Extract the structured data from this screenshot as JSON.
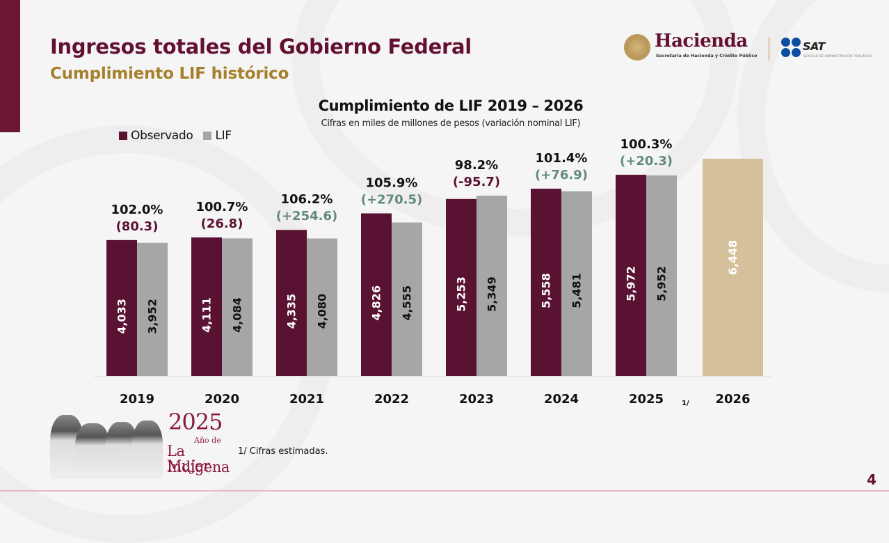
{
  "header": {
    "title": "Ingresos totales del Gobierno Federal",
    "subtitle": "Cumplimiento LIF histórico"
  },
  "logos": {
    "hacienda_name": "Hacienda",
    "hacienda_sub": "Secretaría de Hacienda y Crédito Público",
    "sat_name": "SAT",
    "sat_sub": "SERVICIO DE ADMINISTRACIÓN TRIBUTARIA"
  },
  "colors": {
    "observado": "#5a1232",
    "lif": "#a6a6a6",
    "estimado": "#d4c19c",
    "variation_negative": "#5a1232",
    "variation_positive": "#5f8a7c",
    "brand_primary": "#621132",
    "brand_gold": "#a57f2c"
  },
  "chart_data": {
    "type": "bar",
    "title": "Cumplimiento de LIF 2019 – 2026",
    "subtitle": "Cifras en miles de millones de pesos (variación nominal LIF)",
    "xlabel": "",
    "ylabel": "",
    "ylim": [
      0,
      6448
    ],
    "grid": false,
    "legend_position": "top-left",
    "legend": [
      "Observado",
      "LIF"
    ],
    "categories": [
      "2019",
      "2020",
      "2021",
      "2022",
      "2023",
      "2024",
      "2025",
      "2026"
    ],
    "category_footnotes": {
      "2025": "1/"
    },
    "series": [
      {
        "name": "Observado",
        "values": [
          4033,
          4111,
          4335,
          4826,
          5253,
          5558,
          5972,
          null
        ],
        "labels": [
          "4,033",
          "4,111",
          "4,335",
          "4,826",
          "5,253",
          "5,558",
          "5,972",
          null
        ]
      },
      {
        "name": "LIF",
        "values": [
          3952,
          4084,
          4080,
          4555,
          5349,
          5481,
          5952,
          6448
        ],
        "labels": [
          "3,952",
          "4,084",
          "4,080",
          "4,555",
          "5,349",
          "5,481",
          "5,952",
          "6,448"
        ]
      }
    ],
    "annotations": [
      {
        "category": "2019",
        "pct": "102.0%",
        "variation": "(80.3)",
        "sign": "neg"
      },
      {
        "category": "2020",
        "pct": "100.7%",
        "variation": "(26.8)",
        "sign": "neg"
      },
      {
        "category": "2021",
        "pct": "106.2%",
        "variation": "(+254.6)",
        "sign": "pos"
      },
      {
        "category": "2022",
        "pct": "105.9%",
        "variation": "(+270.5)",
        "sign": "pos"
      },
      {
        "category": "2023",
        "pct": "98.2%",
        "variation": "(-95.7)",
        "sign": "neg"
      },
      {
        "category": "2024",
        "pct": "101.4%",
        "variation": "(+76.9)",
        "sign": "pos"
      },
      {
        "category": "2025",
        "pct": "100.3%",
        "variation": "(+20.3)",
        "sign": "pos"
      }
    ]
  },
  "footer": {
    "footnote_mark": "1/",
    "footnote": "1/ Cifras estimadas.",
    "page_number": "4",
    "banner_year": "2025",
    "banner_ano": "Año de",
    "banner_line1": "La Mujer",
    "banner_line2": "Indígena"
  }
}
